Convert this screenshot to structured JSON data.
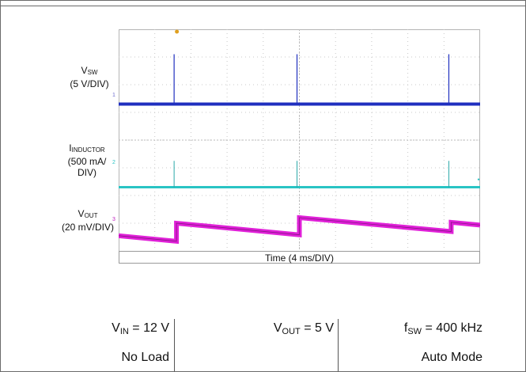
{
  "chart_data": {
    "type": "line",
    "title": "",
    "xlabel": "Time (4 ms/DIV)",
    "x_divisions": 10,
    "y_divisions": 8,
    "grid": true,
    "series": [
      {
        "name_main": "V",
        "name_sub": "SW",
        "name_scale": "(5 V/DIV)",
        "color": "#1f2fbf",
        "marker_color": "#6f6fd0",
        "marker_label": "1",
        "baseline_div": 5.3,
        "spike_div": 1.8,
        "spike_times_div": [
          1.6,
          5.0,
          9.2
        ]
      },
      {
        "name_main": "I",
        "name_sub": "INDUCTOR",
        "name_scale_lines": [
          "(500 mA/",
          "DIV)"
        ],
        "color": "#29c4c4",
        "marker_color": "#29c4c4",
        "marker_label": "2",
        "baseline_div": 2.3,
        "spike_div": 0.95,
        "spike_times_div": [
          1.6,
          5.0,
          9.2
        ]
      },
      {
        "name_main": "V",
        "name_sub": "OUT",
        "name_scale": "(20 mV/DIV)",
        "color": "#e020d8",
        "marker_color": "#c020c0",
        "marker_label": "3",
        "ramp_low_div": 0.1,
        "ramp_high_div": 0.62,
        "ramp_points_div": [
          [
            0,
            0.55
          ],
          [
            1.6,
            0.35
          ],
          [
            1.6,
            1.0
          ],
          [
            5.0,
            0.58
          ],
          [
            5.0,
            1.2
          ],
          [
            9.2,
            0.7
          ],
          [
            9.2,
            1.03
          ],
          [
            10,
            0.93
          ]
        ]
      }
    ],
    "trigger_marker_color": "#e0a020"
  },
  "conditions": [
    {
      "main": "V",
      "sub": "IN",
      "rest": " = 12 V",
      "line2": "No Load"
    },
    {
      "main": "V",
      "sub": "OUT",
      "rest": " = 5 V",
      "line2": ""
    },
    {
      "main": "f",
      "sub": "SW",
      "rest": " = 400 kHz",
      "line2": "Auto Mode"
    }
  ]
}
